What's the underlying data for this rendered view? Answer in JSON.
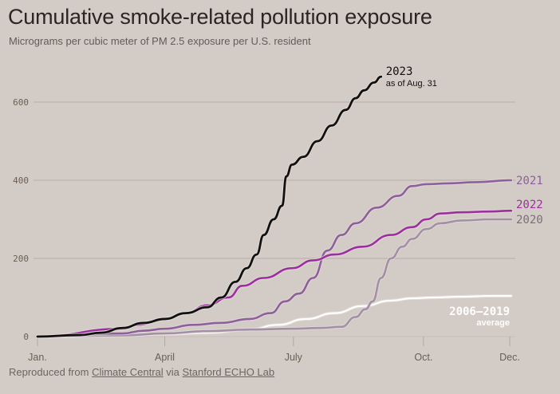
{
  "header": {
    "title": "Cumulative smoke-related pollution exposure",
    "subtitle": "Micrograms per cubic meter of PM 2.5 exposure per U.S. resident"
  },
  "footer": {
    "prefix": "Reproduced from ",
    "link1": "Climate Central",
    "middle": " via ",
    "link2": "Stanford ECHO Lab"
  },
  "colors": {
    "background": "#d3cbc6",
    "gridline": "#b8aca8",
    "s2023": "#111111",
    "s2022": "#9c2fa0",
    "s2021": "#8e5f9c",
    "s2020": "#a38fa6",
    "avg": "#ffffff",
    "label2021": "#8e5f9c",
    "label2022": "#9c2fa0",
    "label2020": "#7a7078",
    "label2023": "#111111",
    "labelAvg": "#ffffff"
  },
  "chart_data": {
    "type": "line",
    "title": "Cumulative smoke-related pollution exposure",
    "subtitle": "Micrograms per cubic meter of PM 2.5 exposure per U.S. resident",
    "xlabel": "",
    "ylabel": "",
    "x_unit": "day of year",
    "xlim": [
      0,
      335
    ],
    "ylim": [
      0,
      660
    ],
    "grid": true,
    "y_ticks": [
      {
        "value": 0,
        "label": "0"
      },
      {
        "value": 200,
        "label": "200"
      },
      {
        "value": 400,
        "label": "400"
      },
      {
        "value": 600,
        "label": "600"
      }
    ],
    "x_ticks": [
      {
        "value": 0,
        "label": "Jan."
      },
      {
        "value": 90,
        "label": "April"
      },
      {
        "value": 181,
        "label": "July"
      },
      {
        "value": 273,
        "label": "Oct."
      },
      {
        "value": 334,
        "label": "Dec."
      }
    ],
    "series": [
      {
        "key": "avg",
        "name": "2006–2019",
        "note": "average",
        "x": [
          0,
          60,
          90,
          120,
          150,
          170,
          190,
          210,
          230,
          250,
          265,
          280,
          300,
          320,
          335
        ],
        "y": [
          0,
          3,
          6,
          10,
          18,
          30,
          45,
          60,
          78,
          92,
          98,
          100,
          102,
          104,
          104
        ]
      },
      {
        "key": "s2020",
        "name": "2020",
        "x": [
          0,
          60,
          90,
          120,
          150,
          180,
          200,
          215,
          225,
          232,
          237,
          243,
          250,
          258,
          265,
          275,
          285,
          300,
          320,
          335
        ],
        "y": [
          0,
          3,
          8,
          14,
          18,
          20,
          22,
          25,
          50,
          70,
          90,
          150,
          200,
          230,
          250,
          275,
          290,
          297,
          300,
          300
        ]
      },
      {
        "key": "s2021",
        "name": "2021",
        "x": [
          0,
          60,
          75,
          90,
          110,
          130,
          150,
          165,
          175,
          185,
          195,
          205,
          215,
          225,
          240,
          255,
          265,
          275,
          290,
          310,
          335
        ],
        "y": [
          0,
          8,
          15,
          20,
          30,
          35,
          45,
          60,
          90,
          110,
          150,
          220,
          260,
          290,
          330,
          360,
          385,
          390,
          392,
          395,
          400
        ]
      },
      {
        "key": "s2022",
        "name": "2022",
        "x": [
          0,
          60,
          70,
          90,
          105,
          120,
          135,
          145,
          160,
          180,
          195,
          210,
          230,
          250,
          265,
          275,
          285,
          300,
          320,
          335
        ],
        "y": [
          0,
          20,
          30,
          45,
          60,
          80,
          100,
          130,
          150,
          175,
          195,
          210,
          230,
          260,
          280,
          300,
          315,
          318,
          320,
          322
        ]
      },
      {
        "key": "s2023",
        "name": "2023",
        "note": "as of Aug. 31",
        "x": [
          0,
          30,
          45,
          60,
          75,
          90,
          105,
          120,
          130,
          140,
          148,
          155,
          160,
          167,
          173,
          176,
          180,
          188,
          198,
          208,
          218,
          225,
          231,
          238,
          243
        ],
        "y": [
          0,
          4,
          10,
          22,
          35,
          45,
          60,
          75,
          100,
          140,
          175,
          210,
          260,
          300,
          335,
          410,
          440,
          460,
          500,
          540,
          580,
          610,
          630,
          650,
          665
        ]
      }
    ],
    "annotations": [
      {
        "series": "s2023",
        "text": "2023"
      },
      {
        "series": "s2023",
        "text": "as of Aug. 31"
      },
      {
        "series": "s2021",
        "text": "2021"
      },
      {
        "series": "s2022",
        "text": "2022"
      },
      {
        "series": "s2020",
        "text": "2020"
      },
      {
        "series": "avg",
        "text": "2006–2019"
      },
      {
        "series": "avg",
        "text": "average"
      }
    ]
  }
}
